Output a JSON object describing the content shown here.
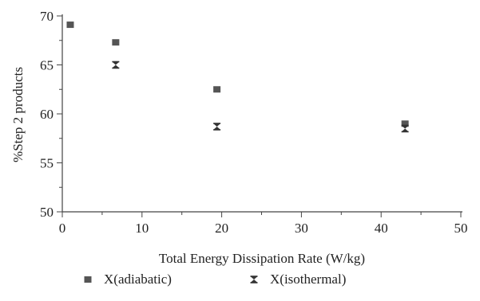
{
  "chart_data": {
    "type": "scatter",
    "xlabel": "Total Energy Dissipation Rate (W/kg)",
    "ylabel": "%Step 2 products",
    "xlim": [
      0,
      50
    ],
    "ylim": [
      50,
      70
    ],
    "x_ticks": [
      0,
      10,
      20,
      30,
      40,
      50
    ],
    "y_ticks": [
      50,
      55,
      60,
      65,
      70
    ],
    "grid": false,
    "legend_position": "bottom",
    "series": [
      {
        "name": "X(adiabatic)",
        "marker": "square",
        "color": "#555555",
        "points": [
          {
            "x": 1.0,
            "y": 69.1
          },
          {
            "x": 6.7,
            "y": 67.3
          },
          {
            "x": 19.4,
            "y": 62.5
          },
          {
            "x": 43.0,
            "y": 59.0
          }
        ]
      },
      {
        "name": "X(isothermal)",
        "marker": "hourglass",
        "color": "#333333",
        "points": [
          {
            "x": 6.7,
            "y": 65.0
          },
          {
            "x": 19.4,
            "y": 58.7
          },
          {
            "x": 43.0,
            "y": 58.5
          }
        ]
      }
    ]
  }
}
